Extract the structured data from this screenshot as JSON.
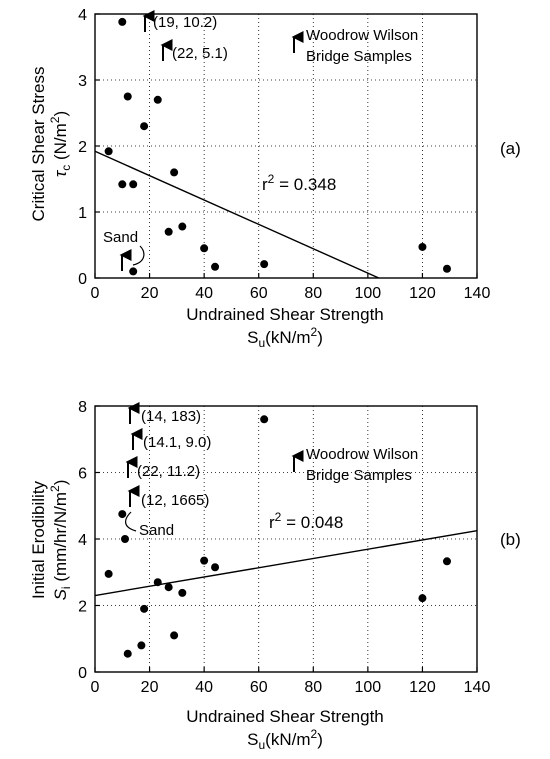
{
  "chart_data": [
    {
      "id": "a",
      "type": "scatter",
      "panel_label": "(a)",
      "xlabel": "Undrained Shear Strength",
      "xlabel_sym": "S",
      "xlabel_sub": "u",
      "xlabel_unit_pre": "(kN/m",
      "xlabel_unit_sup": "2",
      "xlabel_unit_post": ")",
      "ylabel_line1": "Critical Shear Stress",
      "ylabel_sym": "τ",
      "ylabel_sub": "c",
      "ylabel_unit_pre": " (N/m",
      "ylabel_unit_sup": "2",
      "ylabel_unit_post": ")",
      "xlim": [
        0,
        140
      ],
      "ylim": [
        0,
        4
      ],
      "xticks": [
        0,
        20,
        40,
        60,
        80,
        100,
        120,
        140
      ],
      "yticks": [
        0,
        1,
        2,
        3,
        4
      ],
      "grid": true,
      "points": [
        {
          "x": 5,
          "y": 1.92
        },
        {
          "x": 10,
          "y": 3.88
        },
        {
          "x": 10,
          "y": 1.42
        },
        {
          "x": 12,
          "y": 2.75
        },
        {
          "x": 14,
          "y": 1.42
        },
        {
          "x": 14,
          "y": 0.1
        },
        {
          "x": 18,
          "y": 2.3
        },
        {
          "x": 23,
          "y": 2.7
        },
        {
          "x": 27,
          "y": 0.7
        },
        {
          "x": 29,
          "y": 1.6
        },
        {
          "x": 32,
          "y": 0.78
        },
        {
          "x": 40,
          "y": 0.45
        },
        {
          "x": 44,
          "y": 0.17
        },
        {
          "x": 62,
          "y": 0.21
        },
        {
          "x": 120,
          "y": 0.47
        },
        {
          "x": 129,
          "y": 0.14
        }
      ],
      "fit_line": {
        "x": [
          0,
          104
        ],
        "y": [
          1.92,
          0.0
        ]
      },
      "r2_prefix": "r",
      "r2_sup": "2",
      "r2_value": " = 0.348",
      "offscale": [
        {
          "x": 19,
          "y": 10.2,
          "label": "(19, 10.2)"
        },
        {
          "x": 22,
          "y": 5.1,
          "label": "(22, 5.1)"
        }
      ],
      "legend_line1": "Woodrow Wilson",
      "legend_line2": "Bridge Samples",
      "sand_label": "Sand"
    },
    {
      "id": "b",
      "type": "scatter",
      "panel_label": "(b)",
      "xlabel": "Undrained Shear Strength",
      "xlabel_sym": "S",
      "xlabel_sub": "u",
      "xlabel_unit_pre": "(kN/m",
      "xlabel_unit_sup": "2",
      "xlabel_unit_post": ")",
      "ylabel_line1": "Initial Erodibility",
      "ylabel_sym": "S",
      "ylabel_sub": "i",
      "ylabel_unit_pre": " (mm/hr/N/m",
      "ylabel_unit_sup": "2",
      "ylabel_unit_post": ")",
      "xlim": [
        0,
        140
      ],
      "ylim": [
        0,
        8
      ],
      "xticks": [
        0,
        20,
        40,
        60,
        80,
        100,
        120,
        140
      ],
      "yticks": [
        0,
        2,
        4,
        6,
        8
      ],
      "grid": true,
      "points": [
        {
          "x": 5,
          "y": 2.95
        },
        {
          "x": 10,
          "y": 4.75
        },
        {
          "x": 11,
          "y": 4.0
        },
        {
          "x": 12,
          "y": 0.55
        },
        {
          "x": 17,
          "y": 0.8
        },
        {
          "x": 18,
          "y": 1.9
        },
        {
          "x": 23,
          "y": 2.7
        },
        {
          "x": 27,
          "y": 2.55
        },
        {
          "x": 29,
          "y": 1.1
        },
        {
          "x": 32,
          "y": 2.38
        },
        {
          "x": 40,
          "y": 3.35
        },
        {
          "x": 44,
          "y": 3.15
        },
        {
          "x": 62,
          "y": 7.6
        },
        {
          "x": 120,
          "y": 2.22
        },
        {
          "x": 129,
          "y": 3.33
        }
      ],
      "fit_line": {
        "x": [
          0,
          140
        ],
        "y": [
          2.3,
          4.25
        ]
      },
      "r2_prefix": "r",
      "r2_sup": "2",
      "r2_value": " = 0.048",
      "offscale": [
        {
          "x": 14,
          "y": 183,
          "label": "(14, 183)"
        },
        {
          "x": 14.1,
          "y": 9.0,
          "label": "(14.1, 9.0)"
        },
        {
          "x": 22,
          "y": 11.2,
          "label": "(22, 11.2)"
        },
        {
          "x": 12,
          "y": 1665,
          "label": "(12, 1665)"
        }
      ],
      "legend_line1": "Woodrow Wilson",
      "legend_line2": "Bridge Samples",
      "sand_label": "Sand"
    }
  ]
}
